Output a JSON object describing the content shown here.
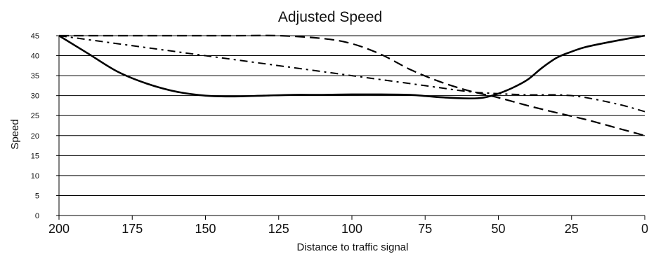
{
  "chart_data": {
    "type": "line",
    "title": "Adjusted Speed",
    "xlabel": "Distance to traffic signal",
    "ylabel": "Speed",
    "xlim": [
      200,
      0
    ],
    "ylim": [
      0,
      45
    ],
    "x_ticks": [
      "200",
      "175",
      "150",
      "125",
      "100",
      "75",
      "50",
      "25",
      "0"
    ],
    "y_ticks": [
      "0",
      "5",
      "10",
      "15",
      "20",
      "25",
      "30",
      "35",
      "40",
      "45"
    ],
    "grid": true,
    "legend": "none",
    "series": [
      {
        "style": "solid",
        "color": "#000000",
        "x": [
          200,
          190,
          180,
          170,
          160,
          150,
          140,
          130,
          120,
          110,
          100,
          90,
          80,
          70,
          60,
          55,
          50,
          45,
          40,
          35,
          30,
          25,
          20,
          10,
          0
        ],
        "y": [
          45,
          40.5,
          36,
          33,
          31,
          30,
          29.8,
          30,
          30.2,
          30.2,
          30.3,
          30.3,
          30.2,
          29.6,
          29.3,
          29.5,
          30.5,
          32,
          34,
          37,
          39.5,
          41,
          42.2,
          43.7,
          45
        ]
      },
      {
        "style": "dashed",
        "color": "#000000",
        "x": [
          200,
          180,
          160,
          140,
          125,
          110,
          100,
          90,
          80,
          70,
          60,
          50,
          40,
          30,
          20,
          10,
          0
        ],
        "y": [
          45,
          45,
          45,
          45,
          45,
          44.3,
          43,
          40.3,
          36.5,
          33.5,
          31.2,
          29.5,
          27.5,
          25.7,
          24,
          22,
          20
        ]
      },
      {
        "style": "dash-dot",
        "color": "#000000",
        "x": [
          200,
          175,
          150,
          125,
          100,
          75,
          60,
          50,
          40,
          25,
          10,
          0
        ],
        "y": [
          45,
          42.5,
          40,
          37.5,
          35,
          32.5,
          31,
          30.5,
          30.2,
          30,
          28,
          26
        ]
      }
    ]
  }
}
